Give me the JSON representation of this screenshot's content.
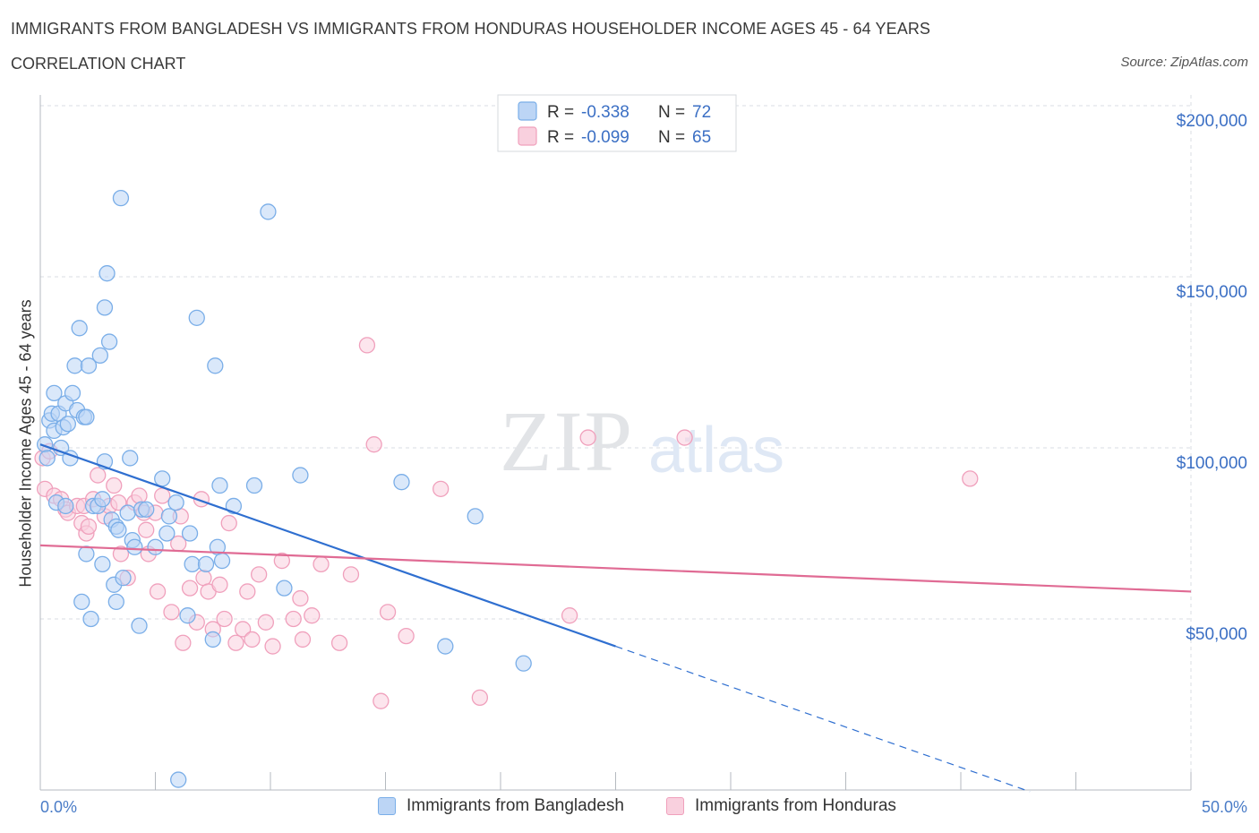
{
  "header": {
    "title": "IMMIGRANTS FROM BANGLADESH VS IMMIGRANTS FROM HONDURAS HOUSEHOLDER INCOME AGES 45 - 64 YEARS",
    "subtitle": "CORRELATION CHART",
    "source": "Source: ZipAtlas.com"
  },
  "colors": {
    "bangladesh": "#7aaee8",
    "bangladesh_fill": "#bcd5f5",
    "bangladesh_line": "#2f6fd0",
    "honduras": "#f0a0bc",
    "honduras_fill": "#f9d0de",
    "honduras_line": "#e06b94",
    "value_text": "#3b6fc4",
    "grid": "#d8dde3"
  },
  "legend_top": {
    "rows": [
      {
        "r_label": "R =",
        "r_value": "-0.338",
        "n_label": "N =",
        "n_value": "72"
      },
      {
        "r_label": "R =",
        "r_value": "-0.099",
        "n_label": "N =",
        "n_value": "65"
      }
    ]
  },
  "legend_bottom": {
    "items": [
      {
        "label": "Immigrants from Bangladesh"
      },
      {
        "label": "Immigrants from Honduras"
      }
    ]
  },
  "watermark": {
    "zip": "ZIP",
    "atlas": "atlas"
  },
  "chart_data": {
    "type": "scatter",
    "xlabel": "",
    "ylabel": "Householder Income Ages 45 - 64 years",
    "xlim": [
      0,
      50
    ],
    "ylim": [
      0,
      200000
    ],
    "x_tick_labels": [
      "0.0%",
      "50.0%"
    ],
    "y_ticks": [
      50000,
      100000,
      150000,
      200000
    ],
    "y_tick_labels": [
      "$50,000",
      "$100,000",
      "$150,000",
      "$200,000"
    ],
    "grid": true,
    "series": [
      {
        "name": "Immigrants from Bangladesh",
        "R": -0.338,
        "N": 72,
        "trend": {
          "x0": 0,
          "y0": 101000,
          "x1": 25,
          "y1": 42000,
          "dashed_to_x": 43
        },
        "points": [
          [
            0.2,
            101000
          ],
          [
            0.3,
            97000
          ],
          [
            0.4,
            108000
          ],
          [
            0.5,
            110000
          ],
          [
            0.6,
            116000
          ],
          [
            0.6,
            105000
          ],
          [
            0.7,
            84000
          ],
          [
            0.8,
            110000
          ],
          [
            0.9,
            100000
          ],
          [
            1.0,
            106000
          ],
          [
            1.1,
            113000
          ],
          [
            1.1,
            83000
          ],
          [
            1.2,
            107000
          ],
          [
            1.3,
            97000
          ],
          [
            1.4,
            116000
          ],
          [
            1.5,
            124000
          ],
          [
            1.6,
            111000
          ],
          [
            1.7,
            135000
          ],
          [
            1.8,
            55000
          ],
          [
            1.9,
            109000
          ],
          [
            2.0,
            109000
          ],
          [
            2.0,
            69000
          ],
          [
            2.1,
            124000
          ],
          [
            2.2,
            50000
          ],
          [
            2.3,
            83000
          ],
          [
            2.5,
            83000
          ],
          [
            2.6,
            127000
          ],
          [
            2.7,
            85000
          ],
          [
            2.7,
            66000
          ],
          [
            2.8,
            141000
          ],
          [
            2.8,
            96000
          ],
          [
            2.9,
            151000
          ],
          [
            3.0,
            131000
          ],
          [
            3.1,
            79000
          ],
          [
            3.2,
            60000
          ],
          [
            3.3,
            55000
          ],
          [
            3.3,
            77000
          ],
          [
            3.4,
            76000
          ],
          [
            3.5,
            173000
          ],
          [
            3.6,
            62000
          ],
          [
            3.8,
            81000
          ],
          [
            3.9,
            97000
          ],
          [
            4.0,
            73000
          ],
          [
            4.1,
            71000
          ],
          [
            4.3,
            48000
          ],
          [
            4.4,
            82000
          ],
          [
            4.6,
            82000
          ],
          [
            5.0,
            71000
          ],
          [
            5.3,
            91000
          ],
          [
            5.5,
            75000
          ],
          [
            5.6,
            80000
          ],
          [
            5.9,
            84000
          ],
          [
            6.0,
            3000
          ],
          [
            6.4,
            51000
          ],
          [
            6.5,
            75000
          ],
          [
            6.6,
            66000
          ],
          [
            6.8,
            138000
          ],
          [
            7.2,
            66000
          ],
          [
            7.5,
            44000
          ],
          [
            7.6,
            124000
          ],
          [
            7.7,
            71000
          ],
          [
            7.8,
            89000
          ],
          [
            7.9,
            67000
          ],
          [
            8.4,
            83000
          ],
          [
            9.3,
            89000
          ],
          [
            9.9,
            169000
          ],
          [
            10.6,
            59000
          ],
          [
            11.3,
            92000
          ],
          [
            15.7,
            90000
          ],
          [
            17.6,
            42000
          ],
          [
            18.9,
            80000
          ],
          [
            21.0,
            37000
          ]
        ]
      },
      {
        "name": "Immigrants from Honduras",
        "R": -0.099,
        "N": 65,
        "trend": {
          "x0": 0,
          "y0": 71500,
          "x1": 50,
          "y1": 58000
        },
        "points": [
          [
            0.1,
            97000
          ],
          [
            0.2,
            88000
          ],
          [
            0.4,
            99000
          ],
          [
            0.6,
            86000
          ],
          [
            0.9,
            85000
          ],
          [
            1.1,
            82000
          ],
          [
            1.2,
            81000
          ],
          [
            1.6,
            83000
          ],
          [
            1.8,
            78000
          ],
          [
            1.9,
            83000
          ],
          [
            2.0,
            75000
          ],
          [
            2.1,
            77000
          ],
          [
            2.3,
            85000
          ],
          [
            2.5,
            92000
          ],
          [
            2.8,
            80000
          ],
          [
            3.0,
            83000
          ],
          [
            3.2,
            89000
          ],
          [
            3.4,
            84000
          ],
          [
            3.5,
            69000
          ],
          [
            3.8,
            62000
          ],
          [
            4.1,
            84000
          ],
          [
            4.3,
            86000
          ],
          [
            4.5,
            81000
          ],
          [
            4.6,
            76000
          ],
          [
            4.7,
            69000
          ],
          [
            5.0,
            81000
          ],
          [
            5.1,
            58000
          ],
          [
            5.3,
            86000
          ],
          [
            5.7,
            52000
          ],
          [
            6.0,
            72000
          ],
          [
            6.1,
            80000
          ],
          [
            6.2,
            43000
          ],
          [
            6.5,
            59000
          ],
          [
            6.8,
            49000
          ],
          [
            7.0,
            85000
          ],
          [
            7.1,
            62000
          ],
          [
            7.3,
            58000
          ],
          [
            7.5,
            47000
          ],
          [
            7.8,
            60000
          ],
          [
            8.0,
            50000
          ],
          [
            8.2,
            78000
          ],
          [
            8.5,
            43000
          ],
          [
            8.8,
            47000
          ],
          [
            9.0,
            58000
          ],
          [
            9.2,
            44000
          ],
          [
            9.5,
            63000
          ],
          [
            9.8,
            49000
          ],
          [
            10.1,
            42000
          ],
          [
            10.5,
            67000
          ],
          [
            11.0,
            50000
          ],
          [
            11.3,
            56000
          ],
          [
            11.4,
            44000
          ],
          [
            11.8,
            51000
          ],
          [
            12.2,
            66000
          ],
          [
            13.0,
            43000
          ],
          [
            13.5,
            63000
          ],
          [
            14.2,
            130000
          ],
          [
            14.5,
            101000
          ],
          [
            14.8,
            26000
          ],
          [
            15.1,
            52000
          ],
          [
            15.9,
            45000
          ],
          [
            17.4,
            88000
          ],
          [
            19.1,
            27000
          ],
          [
            23.0,
            51000
          ],
          [
            40.4,
            91000
          ]
        ],
        "extra_points": [
          [
            23.8,
            103000
          ],
          [
            28.0,
            103000
          ]
        ]
      }
    ]
  }
}
